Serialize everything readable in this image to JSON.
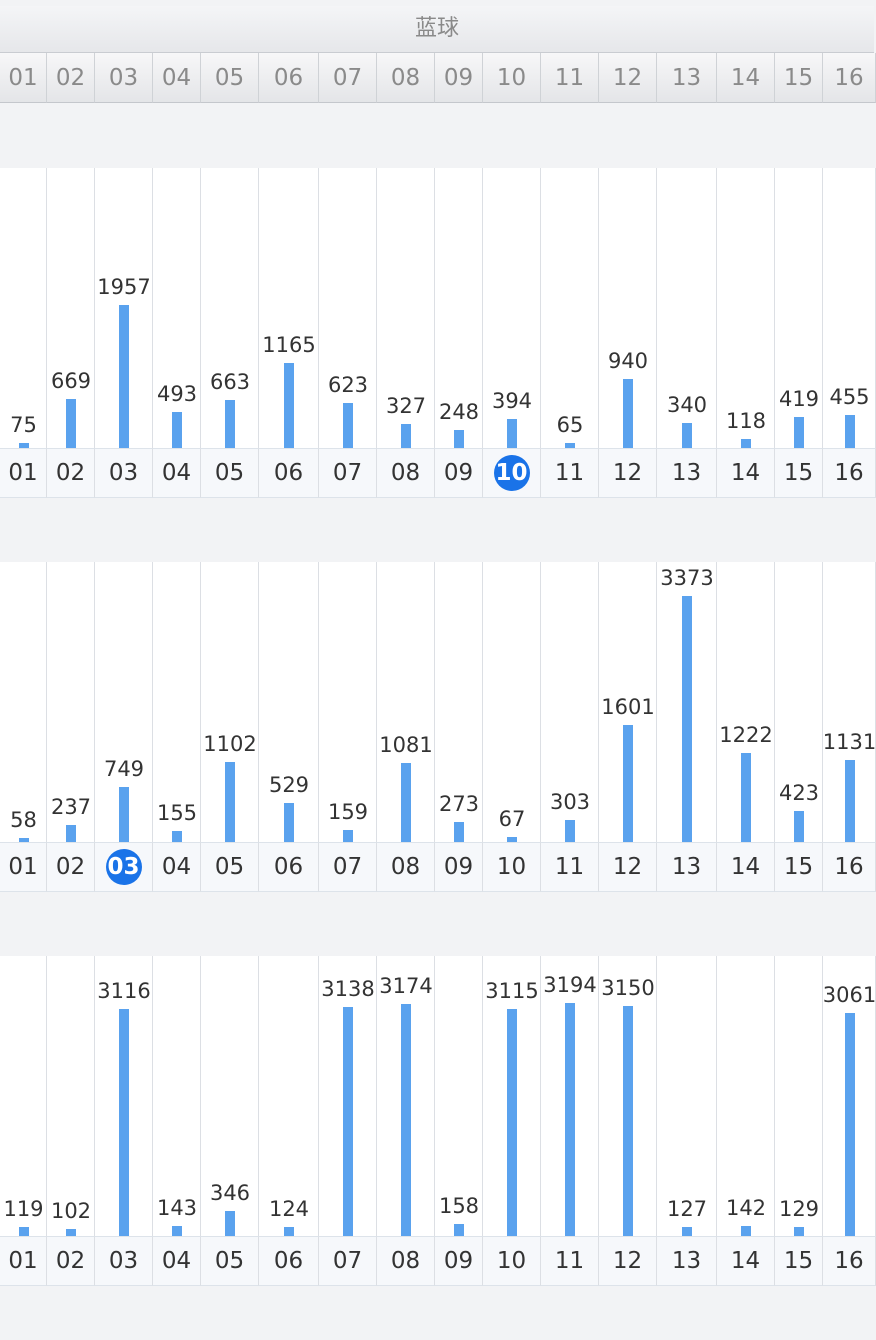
{
  "title": "蓝球",
  "header_numbers": [
    "01",
    "02",
    "03",
    "04",
    "05",
    "06",
    "07",
    "08",
    "09",
    "10",
    "11",
    "12",
    "13",
    "14",
    "15",
    "16"
  ],
  "colors": {
    "bar": "#5aa2ee",
    "highlight": "#1a73e8"
  },
  "chart_data": [
    {
      "type": "bar",
      "categories": [
        "01",
        "02",
        "03",
        "04",
        "05",
        "06",
        "07",
        "08",
        "09",
        "10",
        "11",
        "12",
        "13",
        "14",
        "15",
        "16"
      ],
      "values": [
        75,
        669,
        1957,
        493,
        663,
        1165,
        623,
        327,
        248,
        394,
        65,
        940,
        340,
        118,
        419,
        455
      ],
      "highlight": "10"
    },
    {
      "type": "bar",
      "categories": [
        "01",
        "02",
        "03",
        "04",
        "05",
        "06",
        "07",
        "08",
        "09",
        "10",
        "11",
        "12",
        "13",
        "14",
        "15",
        "16"
      ],
      "values": [
        58,
        237,
        749,
        155,
        1102,
        529,
        159,
        1081,
        273,
        67,
        303,
        1601,
        3373,
        1222,
        423,
        1131
      ],
      "highlight": "03"
    },
    {
      "type": "bar",
      "categories": [
        "01",
        "02",
        "03",
        "04",
        "05",
        "06",
        "07",
        "08",
        "09",
        "10",
        "11",
        "12",
        "13",
        "14",
        "15",
        "16"
      ],
      "values": [
        119,
        102,
        3116,
        143,
        346,
        124,
        3138,
        3174,
        158,
        3115,
        3194,
        3150,
        127,
        142,
        129,
        3061
      ],
      "highlight": null
    }
  ]
}
